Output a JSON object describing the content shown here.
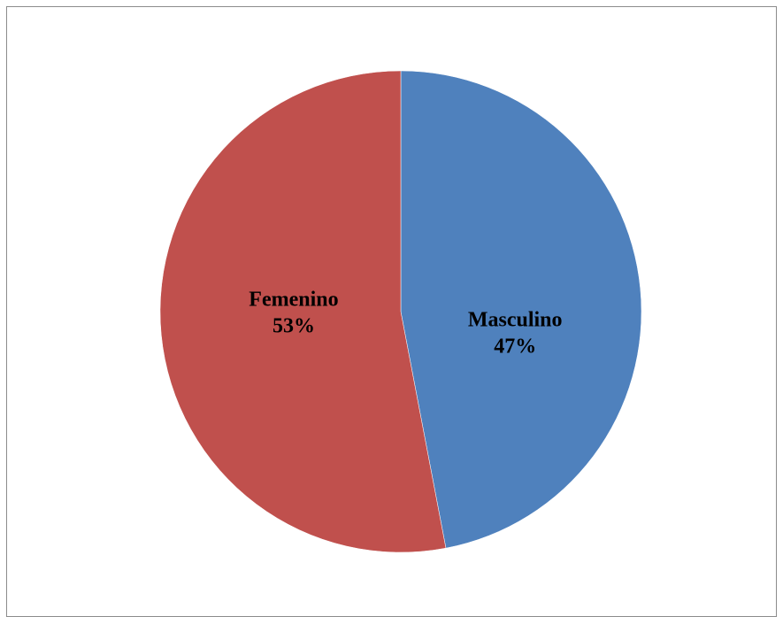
{
  "chart_data": {
    "type": "pie",
    "title": "",
    "slices": [
      {
        "label": "Masculino",
        "value": 47,
        "percent_label": "47%",
        "color": "#4F81BD"
      },
      {
        "label": "Femenino",
        "value": 53,
        "percent_label": "53%",
        "color": "#C0504D"
      }
    ],
    "start_angle_deg": 0,
    "direction": "clockwise",
    "legend": "none",
    "data_labels": "inside"
  }
}
